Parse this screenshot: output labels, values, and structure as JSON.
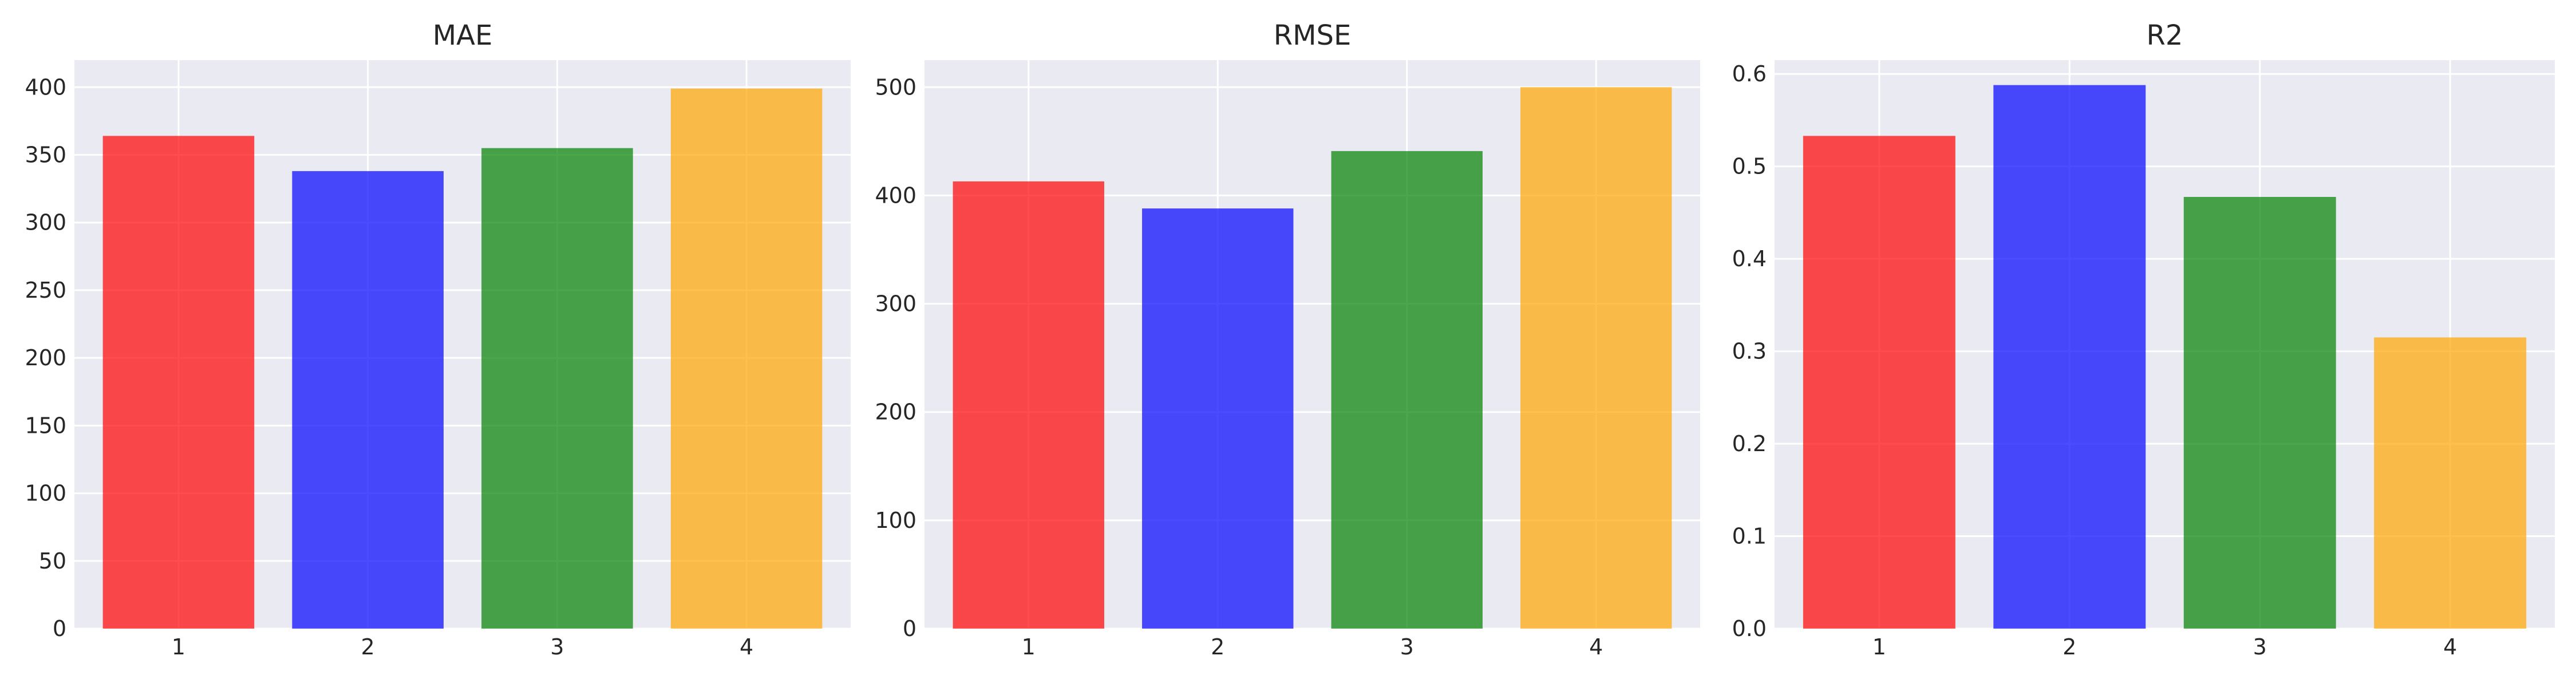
{
  "chart_data": [
    {
      "type": "bar",
      "title": "MAE",
      "categories": [
        "1",
        "2",
        "3",
        "4"
      ],
      "values": [
        364,
        338,
        355,
        399
      ],
      "colors": [
        "#ff0000",
        "#0000ff",
        "#008000",
        "#ffa500"
      ],
      "ylim": [
        0,
        420
      ],
      "yticks": [
        0,
        50,
        100,
        150,
        200,
        250,
        300,
        350,
        400
      ],
      "ytick_labels": [
        "0",
        "50",
        "100",
        "150",
        "200",
        "250",
        "300",
        "350",
        "400"
      ],
      "grid": true
    },
    {
      "type": "bar",
      "title": "RMSE",
      "categories": [
        "1",
        "2",
        "3",
        "4"
      ],
      "values": [
        413,
        388,
        441,
        500
      ],
      "colors": [
        "#ff0000",
        "#0000ff",
        "#008000",
        "#ffa500"
      ],
      "ylim": [
        0,
        525
      ],
      "yticks": [
        0,
        100,
        200,
        300,
        400,
        500
      ],
      "ytick_labels": [
        "0",
        "100",
        "200",
        "300",
        "400",
        "500"
      ],
      "grid": true
    },
    {
      "type": "bar",
      "title": "R2",
      "categories": [
        "1",
        "2",
        "3",
        "4"
      ],
      "values": [
        0.533,
        0.588,
        0.467,
        0.315
      ],
      "colors": [
        "#ff0000",
        "#0000ff",
        "#008000",
        "#ffa500"
      ],
      "ylim": [
        0,
        0.615
      ],
      "yticks": [
        0.0,
        0.1,
        0.2,
        0.3,
        0.4,
        0.5,
        0.6
      ],
      "ytick_labels": [
        "0.0",
        "0.1",
        "0.2",
        "0.3",
        "0.4",
        "0.5",
        "0.6"
      ],
      "grid": true
    }
  ]
}
